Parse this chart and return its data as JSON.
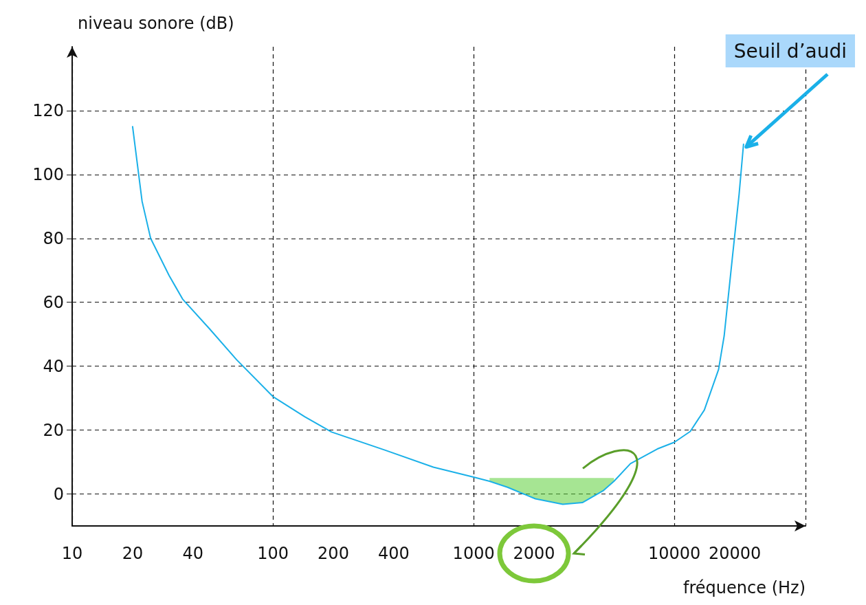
{
  "chart_data": {
    "type": "line",
    "xlabel": "fréquence (Hz)",
    "ylabel": "niveau sonore (dB)",
    "log": "x",
    "xlim": [
      10,
      45000
    ],
    "ylim": [
      -10,
      140
    ],
    "xticks": [
      10,
      20,
      40,
      100,
      200,
      400,
      1000,
      2000,
      10000,
      20000
    ],
    "yticks": [
      0,
      20,
      40,
      60,
      80,
      100,
      120
    ],
    "grid": true,
    "marker": "none",
    "line_style": "solid",
    "series": [
      {
        "color": "#1ab0e8",
        "x": [
          20,
          22.3,
          24.6,
          30.4,
          35.5,
          48.5,
          66,
          100,
          144,
          196,
          363,
          630,
          1000,
          1200,
          1476,
          2030,
          2780,
          3480,
          4410,
          5000,
          6040,
          8220,
          10000,
          12000,
          14100,
          16600,
          17700,
          19500,
          21000,
          22100
        ],
        "values": [
          115,
          91.6,
          80,
          68.4,
          61,
          51.6,
          42,
          30.5,
          24.2,
          19.4,
          13.7,
          8.4,
          5.3,
          4,
          2.1,
          -1.5,
          -3.2,
          -2.7,
          1,
          4,
          9.5,
          14.1,
          16.2,
          19.6,
          26.3,
          39,
          49.5,
          74.7,
          93.7,
          109.5
        ],
        "lower": [
          null,
          null,
          null,
          null,
          null,
          null,
          null,
          null,
          null,
          null,
          null,
          null,
          null,
          4,
          2.1,
          -1.5,
          -3.2,
          -2.7,
          1,
          4,
          null,
          null,
          null,
          null,
          null,
          null,
          null,
          null,
          null,
          null
        ],
        "upper": [
          null,
          null,
          null,
          null,
          null,
          null,
          null,
          null,
          null,
          null,
          null,
          null,
          null,
          5,
          5,
          5,
          5,
          5,
          5,
          5,
          null,
          null,
          null,
          null,
          null,
          null,
          null,
          null,
          null,
          null
        ]
      }
    ],
    "annotations": [
      {
        "text": "Seuil d’audi",
        "x": 22100,
        "y": 109.5
      }
    ]
  }
}
